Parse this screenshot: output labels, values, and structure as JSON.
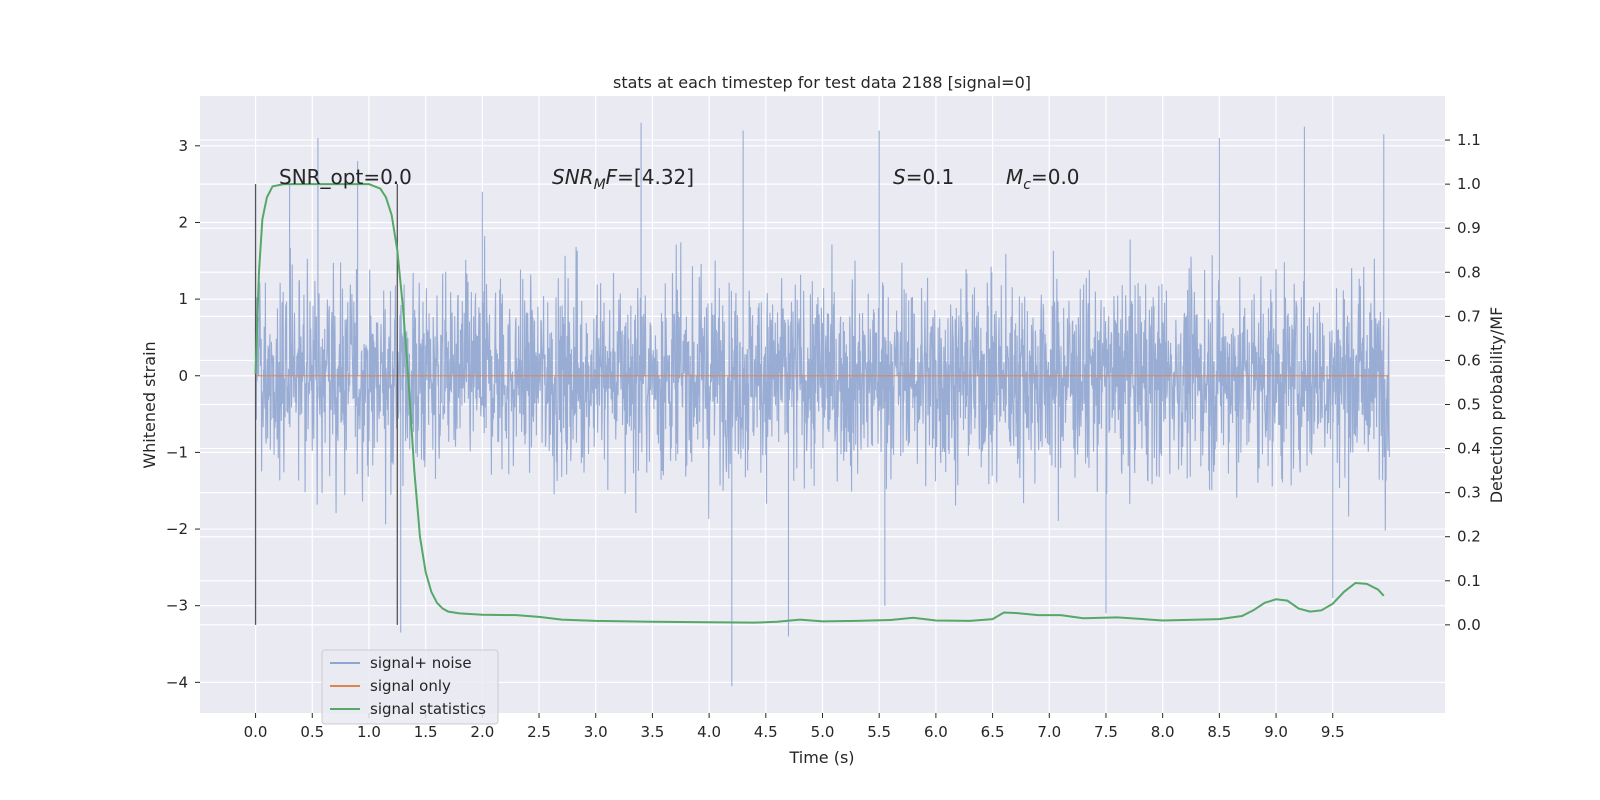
{
  "chart_data": {
    "type": "line",
    "title": "stats at each timestep for test data 2188 [signal=0]",
    "xlabel": "Time (s)",
    "ylabel": "Whitened strain",
    "ylabel_right": "Detection probability/MF",
    "xlim": [
      -0.49,
      10.49
    ],
    "ylim": [
      -4.4,
      3.65
    ],
    "ylim_right": [
      -0.2,
      1.2
    ],
    "x_ticks": [
      "0.0",
      "0.5",
      "1.0",
      "1.5",
      "2.0",
      "2.5",
      "3.0",
      "3.5",
      "4.0",
      "4.5",
      "5.0",
      "5.5",
      "6.0",
      "6.5",
      "7.0",
      "7.5",
      "8.0",
      "8.5",
      "9.0",
      "9.5"
    ],
    "y_ticks": [
      "3",
      "2",
      "1",
      "0",
      "−1",
      "−2",
      "−3",
      "−4"
    ],
    "y_ticks_right": [
      "1.1",
      "1.0",
      "0.9",
      "0.8",
      "0.7",
      "0.6",
      "0.5",
      "0.4",
      "0.3",
      "0.2",
      "0.1",
      "0.0"
    ],
    "grid": true,
    "legend_position": "lower-left",
    "annotations": {
      "snr_opt": "SNR_opt=0.0",
      "snr_mf_base": "SNR",
      "snr_mf_sub": "M",
      "snr_mf_rest": "F",
      "snr_mf_value": "=[4.32]",
      "s_symbol": "S",
      "s_value": "=0.1",
      "mc_symbol": "M",
      "mc_sub": "c",
      "mc_value": "=0.0"
    },
    "vertical_markers": [
      0.0,
      1.25
    ],
    "series": [
      {
        "name": "signal+ noise",
        "color": "#8fa5d0",
        "axis": "left",
        "x_range": [
          0.0,
          10.0
        ],
        "typical_band": [
          -1.3,
          1.3
        ],
        "extremes": [
          {
            "x": 0.3,
            "y": 2.5
          },
          {
            "x": 0.55,
            "y": 3.1
          },
          {
            "x": 0.9,
            "y": 2.8
          },
          {
            "x": 1.28,
            "y": -3.35
          },
          {
            "x": 2.0,
            "y": 2.4
          },
          {
            "x": 3.4,
            "y": 3.3
          },
          {
            "x": 4.2,
            "y": -4.05
          },
          {
            "x": 4.3,
            "y": 3.2
          },
          {
            "x": 4.7,
            "y": -3.4
          },
          {
            "x": 5.5,
            "y": 3.2
          },
          {
            "x": 5.55,
            "y": -3.0
          },
          {
            "x": 7.5,
            "y": -3.1
          },
          {
            "x": 8.5,
            "y": 3.1
          },
          {
            "x": 9.25,
            "y": 3.25
          },
          {
            "x": 9.95,
            "y": 3.15
          },
          {
            "x": 9.5,
            "y": -2.9
          }
        ]
      },
      {
        "name": "signal only",
        "color": "#dd8452",
        "axis": "left",
        "x": [
          0.0,
          10.0
        ],
        "y": [
          0.0,
          0.0
        ]
      },
      {
        "name": "signal statistics",
        "color": "#55a868",
        "axis": "right",
        "x": [
          0.0,
          0.03,
          0.06,
          0.1,
          0.15,
          0.25,
          0.4,
          0.6,
          0.8,
          1.0,
          1.1,
          1.15,
          1.2,
          1.25,
          1.3,
          1.35,
          1.4,
          1.45,
          1.5,
          1.55,
          1.6,
          1.65,
          1.7,
          1.8,
          2.0,
          2.3,
          2.5,
          2.7,
          3.0,
          3.5,
          4.0,
          4.4,
          4.6,
          4.8,
          5.0,
          5.3,
          5.6,
          5.8,
          6.0,
          6.3,
          6.5,
          6.6,
          6.7,
          6.9,
          7.1,
          7.3,
          7.6,
          8.0,
          8.5,
          8.7,
          8.8,
          8.9,
          9.0,
          9.1,
          9.2,
          9.3,
          9.4,
          9.5,
          9.6,
          9.7,
          9.8,
          9.9,
          9.95
        ],
        "y": [
          0.57,
          0.8,
          0.92,
          0.97,
          0.995,
          1.0,
          1.0,
          1.0,
          1.0,
          1.0,
          0.99,
          0.97,
          0.93,
          0.85,
          0.72,
          0.55,
          0.35,
          0.2,
          0.12,
          0.075,
          0.05,
          0.037,
          0.03,
          0.026,
          0.023,
          0.022,
          0.018,
          0.012,
          0.009,
          0.007,
          0.006,
          0.005,
          0.007,
          0.012,
          0.008,
          0.009,
          0.011,
          0.016,
          0.01,
          0.009,
          0.013,
          0.028,
          0.027,
          0.022,
          0.022,
          0.015,
          0.017,
          0.01,
          0.013,
          0.02,
          0.033,
          0.05,
          0.058,
          0.055,
          0.037,
          0.03,
          0.033,
          0.048,
          0.075,
          0.095,
          0.093,
          0.08,
          0.066
        ]
      }
    ]
  }
}
